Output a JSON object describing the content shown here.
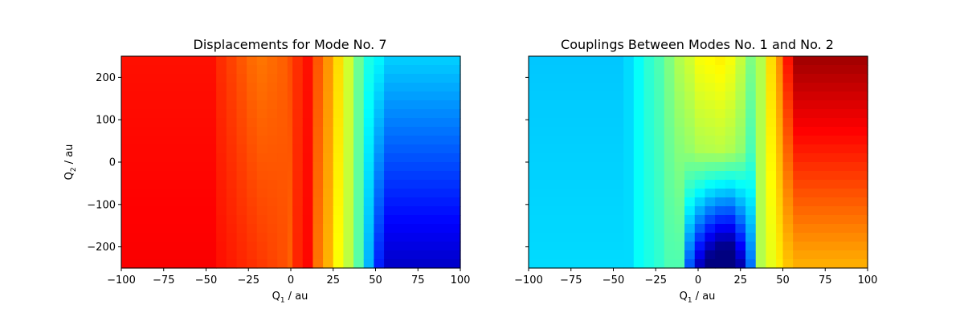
{
  "chart_data": [
    {
      "type": "heatmap",
      "title": "Displacements for Mode No. 7",
      "xlabel": "Q",
      "xlabel_sub": "1",
      "xlabel_unit": " / au",
      "ylabel": "Q",
      "ylabel_sub": "2",
      "ylabel_unit": " / au",
      "xlim": [
        -100,
        100
      ],
      "ylim": [
        -250,
        250
      ],
      "xticks": [
        -100,
        -75,
        -50,
        -25,
        0,
        25,
        50,
        75,
        100
      ],
      "yticks": [
        -200,
        -100,
        0,
        100,
        200
      ],
      "colormap": "jet",
      "value_range": [
        0,
        1
      ],
      "grid": false,
      "x_bands": [
        {
          "x0": -100,
          "x1": -44,
          "top": 0.86,
          "bottom": 0.88
        },
        {
          "x0": -44,
          "x1": -38,
          "top": 0.83,
          "bottom": 0.86
        },
        {
          "x0": -38,
          "x1": -32,
          "top": 0.81,
          "bottom": 0.85
        },
        {
          "x0": -32,
          "x1": -26,
          "top": 0.79,
          "bottom": 0.84
        },
        {
          "x0": -26,
          "x1": -20,
          "top": 0.77,
          "bottom": 0.83
        },
        {
          "x0": -20,
          "x1": -14,
          "top": 0.76,
          "bottom": 0.82
        },
        {
          "x0": -14,
          "x1": -8,
          "top": 0.77,
          "bottom": 0.81
        },
        {
          "x0": -8,
          "x1": -2,
          "top": 0.78,
          "bottom": 0.8
        },
        {
          "x0": -2,
          "x1": 1,
          "top": 0.8,
          "bottom": 0.78
        },
        {
          "x0": 1,
          "x1": 7,
          "top": 0.83,
          "bottom": 0.84
        },
        {
          "x0": 7,
          "x1": 13,
          "top": 0.86,
          "bottom": 0.87
        },
        {
          "x0": 13,
          "x1": 19,
          "top": 0.79,
          "bottom": 0.76
        },
        {
          "x0": 19,
          "x1": 25,
          "top": 0.73,
          "bottom": 0.7
        },
        {
          "x0": 25,
          "x1": 31,
          "top": 0.66,
          "bottom": 0.62
        },
        {
          "x0": 31,
          "x1": 37,
          "top": 0.58,
          "bottom": 0.56
        },
        {
          "x0": 37,
          "x1": 43,
          "top": 0.48,
          "bottom": 0.46
        },
        {
          "x0": 43,
          "x1": 49,
          "top": 0.4,
          "bottom": 0.3
        },
        {
          "x0": 49,
          "x1": 55,
          "top": 0.37,
          "bottom": 0.15
        },
        {
          "x0": 55,
          "x1": 100,
          "top": 0.33,
          "bottom": 0.07
        }
      ]
    },
    {
      "type": "heatmap",
      "title": "Couplings Between Modes No. 1 and No. 2",
      "xlabel": "Q",
      "xlabel_sub": "1",
      "xlabel_unit": " / au",
      "xlim": [
        -100,
        100
      ],
      "ylim": [
        -250,
        250
      ],
      "xticks": [
        -100,
        -75,
        -50,
        -25,
        0,
        25,
        50,
        75,
        100
      ],
      "yticks": [
        -200,
        -100,
        0,
        100,
        200
      ],
      "ytick_labels_shown": false,
      "colormap": "jet",
      "value_range": [
        0,
        1
      ],
      "grid": false,
      "x_bands": [
        {
          "x0": -100,
          "x1": -44,
          "top": 0.32,
          "bottom": 0.34,
          "dip": 0
        },
        {
          "x0": -44,
          "x1": -38,
          "top": 0.34,
          "bottom": 0.34,
          "dip": 0
        },
        {
          "x0": -38,
          "x1": -32,
          "top": 0.38,
          "bottom": 0.38,
          "dip": 0
        },
        {
          "x0": -32,
          "x1": -26,
          "top": 0.42,
          "bottom": 0.4,
          "dip": 0
        },
        {
          "x0": -26,
          "x1": -20,
          "top": 0.45,
          "bottom": 0.42,
          "dip": 0
        },
        {
          "x0": -20,
          "x1": -14,
          "top": 0.5,
          "bottom": 0.45,
          "dip": 0
        },
        {
          "x0": -14,
          "x1": -8,
          "top": 0.55,
          "bottom": 0.45,
          "dip": 0
        },
        {
          "x0": -8,
          "x1": -2,
          "top": 0.58,
          "bottom": 0.45,
          "dip": 0.25
        },
        {
          "x0": -2,
          "x1": 4,
          "top": 0.62,
          "bottom": 0.45,
          "dip": 0.4
        },
        {
          "x0": 4,
          "x1": 10,
          "top": 0.63,
          "bottom": 0.45,
          "dip": 0.5
        },
        {
          "x0": 10,
          "x1": 16,
          "top": 0.64,
          "bottom": 0.45,
          "dip": 0.56
        },
        {
          "x0": 16,
          "x1": 22,
          "top": 0.62,
          "bottom": 0.45,
          "dip": 0.56
        },
        {
          "x0": 22,
          "x1": 28,
          "top": 0.57,
          "bottom": 0.45,
          "dip": 0.42
        },
        {
          "x0": 28,
          "x1": 34,
          "top": 0.5,
          "bottom": 0.38,
          "dip": 0.15
        },
        {
          "x0": 34,
          "x1": 40,
          "top": 0.55,
          "bottom": 0.55,
          "dip": 0
        },
        {
          "x0": 40,
          "x1": 46,
          "top": 0.66,
          "bottom": 0.6,
          "dip": 0
        },
        {
          "x0": 46,
          "x1": 50,
          "top": 0.74,
          "bottom": 0.64,
          "dip": 0
        },
        {
          "x0": 50,
          "x1": 56,
          "top": 0.86,
          "bottom": 0.68,
          "dip": 0
        },
        {
          "x0": 56,
          "x1": 100,
          "top": 0.97,
          "bottom": 0.7,
          "dip": 0
        }
      ]
    }
  ]
}
